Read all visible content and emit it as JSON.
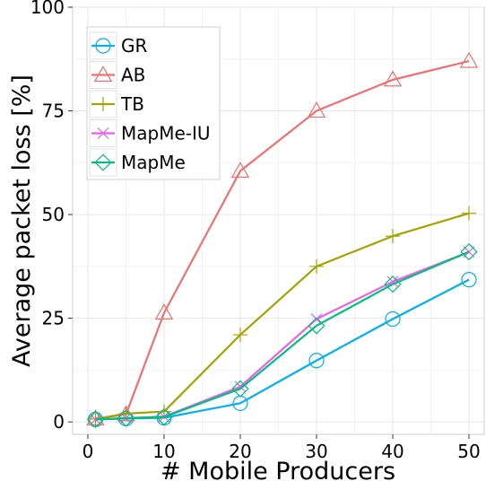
{
  "chart_data": {
    "type": "line",
    "xlabel": "# Mobile Producers",
    "ylabel": "Average packet loss [%]",
    "xlim": [
      -2,
      52
    ],
    "ylim": [
      -3,
      100
    ],
    "xticks": [
      0,
      10,
      20,
      30,
      40,
      50
    ],
    "yticks": [
      0,
      25,
      50,
      75,
      100
    ],
    "grid": true,
    "legend_position": "top-left",
    "series": [
      {
        "name": "GR",
        "color": "#00b0f0",
        "marker": "circle",
        "x": [
          1,
          5,
          10,
          20,
          30,
          40,
          50
        ],
        "y": [
          0.6,
          0.8,
          1.0,
          4.5,
          14.8,
          24.8,
          34.3
        ]
      },
      {
        "name": "AB",
        "color": "#f07070",
        "marker": "triangle",
        "x": [
          1,
          5,
          10,
          20,
          30,
          40,
          50
        ],
        "y": [
          0.8,
          1.8,
          26.3,
          60.5,
          75.0,
          82.5,
          87.0
        ]
      },
      {
        "name": "TB",
        "color": "#a3a300",
        "marker": "plus",
        "x": [
          1,
          5,
          10,
          20,
          30,
          40,
          50
        ],
        "y": [
          0.7,
          2.0,
          2.5,
          21.0,
          37.5,
          44.8,
          50.3
        ]
      },
      {
        "name": "MapMe-IU",
        "color": "#ec5ef0",
        "marker": "cross",
        "x": [
          1,
          5,
          10,
          20,
          30,
          40,
          50
        ],
        "y": [
          0.6,
          0.9,
          1.3,
          8.5,
          24.8,
          33.8,
          41.0
        ]
      },
      {
        "name": "MapMe",
        "color": "#00bf7d",
        "marker": "diamond",
        "x": [
          1,
          5,
          10,
          20,
          30,
          40,
          50
        ],
        "y": [
          0.6,
          0.9,
          1.2,
          8.0,
          23.2,
          33.2,
          41.0
        ]
      }
    ]
  }
}
